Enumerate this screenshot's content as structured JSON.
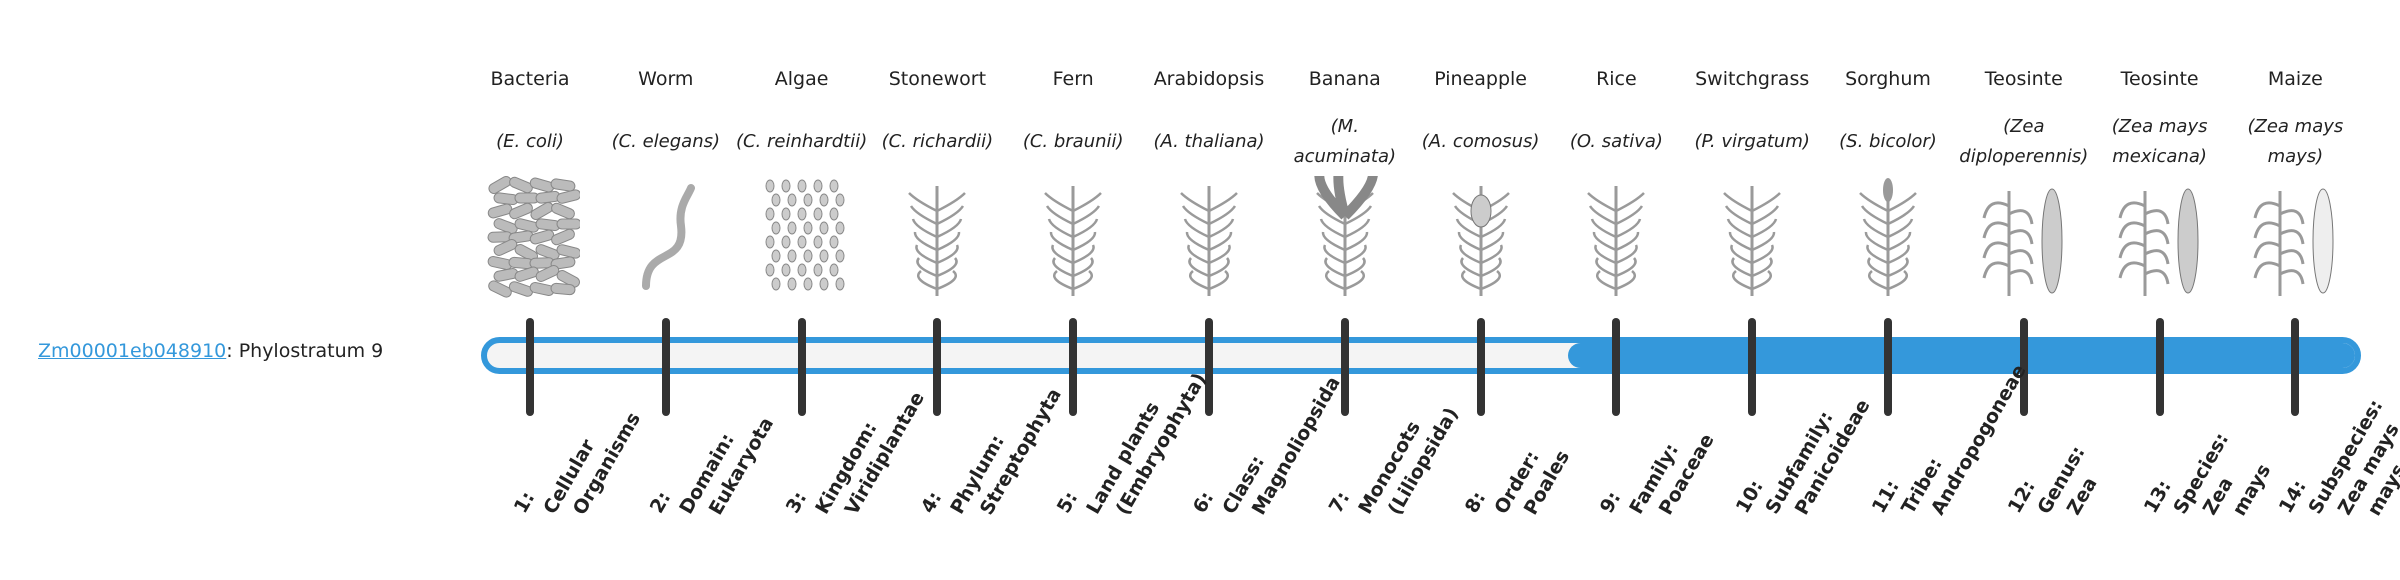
{
  "gene": {
    "id": "Zm00001eb048910",
    "suffix": ": Phylostratum 9"
  },
  "current_stratum": 9,
  "colors": {
    "accent": "#3498db",
    "tick": "#333333",
    "bar_empty": "#f4f4f4"
  },
  "strata": [
    {
      "common": "Bacteria",
      "scientific": "(E. coli)",
      "rank": [
        "1:",
        "Cellular",
        "Organisms"
      ],
      "icon": "bacteria-illustration"
    },
    {
      "common": "Worm",
      "scientific": "(C. elegans)",
      "rank": [
        "2:",
        "Domain:",
        "Eukaryota"
      ],
      "icon": "worm-illustration"
    },
    {
      "common": "Algae",
      "scientific": "(C. reinhardtii)",
      "rank": [
        "3:",
        "Kingdom:",
        "Viridiplantae"
      ],
      "icon": "algae-illustration"
    },
    {
      "common": "Stonewort",
      "scientific": "(C. richardii)",
      "rank": [
        "4:",
        "Phylum:",
        "Streptophyta"
      ],
      "icon": "stonewort-illustration"
    },
    {
      "common": "Fern",
      "scientific": "(C. braunii)",
      "rank": [
        "5:",
        "Land plants",
        "(Embryophyta)"
      ],
      "icon": "fern-illustration"
    },
    {
      "common": "Arabidopsis",
      "scientific": "(A. thaliana)",
      "rank": [
        "6:",
        "Class:",
        "Magnoliopsida"
      ],
      "icon": "arabidopsis-illustration"
    },
    {
      "common": "Banana",
      "scientific": "(M. acuminata)",
      "rank": [
        "7:",
        "Monocots",
        "(Liliopsida)"
      ],
      "icon": "banana-illustration"
    },
    {
      "common": "Pineapple",
      "scientific": "(A. comosus)",
      "rank": [
        "8:",
        "Order:",
        "Poales"
      ],
      "icon": "pineapple-illustration"
    },
    {
      "common": "Rice",
      "scientific": "(O. sativa)",
      "rank": [
        "9:",
        "Family:",
        "Poaceae"
      ],
      "icon": "rice-illustration"
    },
    {
      "common": "Switchgrass",
      "scientific": "(P. virgatum)",
      "rank": [
        "10:",
        "Subfamily:",
        "Panicoideae"
      ],
      "icon": "switchgrass-illustration"
    },
    {
      "common": "Sorghum",
      "scientific": "(S. bicolor)",
      "rank": [
        "11:",
        "Tribe:",
        "Andropogoneae"
      ],
      "icon": "sorghum-illustration"
    },
    {
      "common": "Teosinte",
      "scientific": "(Zea diploperennis)",
      "rank": [
        "12:",
        "Genus:",
        "Zea"
      ],
      "icon": "teosinte-illustration"
    },
    {
      "common": "Teosinte",
      "scientific": "(Zea mays mexicana)",
      "rank": [
        "13:",
        "Species:",
        "Zea",
        "mays"
      ],
      "icon": "teosinte-mexicana-illustration"
    },
    {
      "common": "Maize",
      "scientific": "(Zea mays mays)",
      "rank": [
        "14:",
        "Subspecies:",
        "Zea mays",
        "mays"
      ],
      "icon": "maize-illustration"
    }
  ]
}
